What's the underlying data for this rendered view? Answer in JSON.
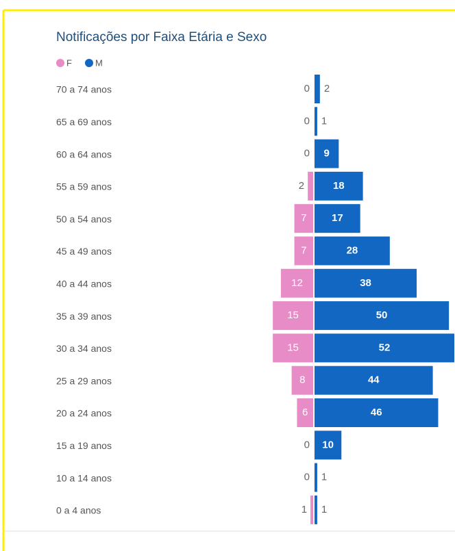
{
  "chart_data": {
    "type": "butterfly",
    "title": "Notificações por Faixa Etária e Sexo",
    "categories": [
      "70 a 74 anos",
      "65 a 69 anos",
      "60 a 64 anos",
      "55 a 59 anos",
      "50 a 54 anos",
      "45 a 49 anos",
      "40 a 44 anos",
      "35 a 39 anos",
      "30 a 34 anos",
      "25 a 29 anos",
      "20 a 24 anos",
      "15 a 19 anos",
      "10 a 14 anos",
      "0 a 4 anos"
    ],
    "series": [
      {
        "name": "F",
        "color": "#e88cc8",
        "values": [
          0,
          0,
          0,
          2,
          7,
          7,
          12,
          15,
          15,
          8,
          6,
          0,
          0,
          1
        ]
      },
      {
        "name": "M",
        "color": "#1167c1",
        "values": [
          2,
          1,
          9,
          18,
          17,
          28,
          38,
          50,
          52,
          44,
          46,
          10,
          1,
          1
        ]
      }
    ]
  }
}
